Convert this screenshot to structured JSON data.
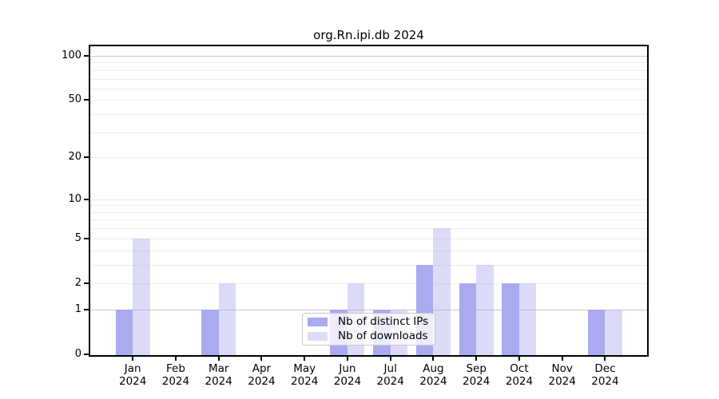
{
  "title": "org.Rn.ipi.db 2024",
  "chart_data": {
    "type": "bar",
    "title": "org.Rn.ipi.db 2024",
    "categories": [
      "Jan",
      "Feb",
      "Mar",
      "Apr",
      "May",
      "Jun",
      "Jul",
      "Aug",
      "Sep",
      "Oct",
      "Nov",
      "Dec"
    ],
    "category_year": "2024",
    "series": [
      {
        "name": "Nb of distinct IPs",
        "color": "#aaaaee",
        "bar_fill": "#aaaaee",
        "values": [
          1,
          0,
          1,
          0,
          0,
          1,
          1,
          3,
          2,
          2,
          0,
          1
        ]
      },
      {
        "name": "Nb of downloads",
        "color": "#ddddf8",
        "bar_fill": "rgba(170,170,238,0.42)",
        "values": [
          5,
          0,
          2,
          0,
          0,
          2,
          1,
          6,
          3,
          2,
          0,
          1
        ]
      }
    ],
    "yscale": "log1p",
    "ylim": [
      0,
      116
    ],
    "ytick_values": [
      100,
      50,
      20,
      10,
      5,
      2,
      1,
      0
    ],
    "grid": "on",
    "grid_minor_values": [
      2,
      3,
      4,
      5,
      6,
      7,
      8,
      9,
      10,
      20,
      30,
      40,
      50,
      60,
      70,
      80,
      90
    ],
    "grid_major_values": [
      1,
      100
    ],
    "legend_position": "bottom-center-inside",
    "colors": {
      "grid_minor": "#ededed",
      "grid_major": "#c8c8c8",
      "axis": "#000000",
      "background": "#ffffff",
      "text": "#000000"
    }
  },
  "legend": {
    "items": [
      {
        "label": "Nb of distinct IPs"
      },
      {
        "label": "Nb of downloads"
      }
    ]
  }
}
